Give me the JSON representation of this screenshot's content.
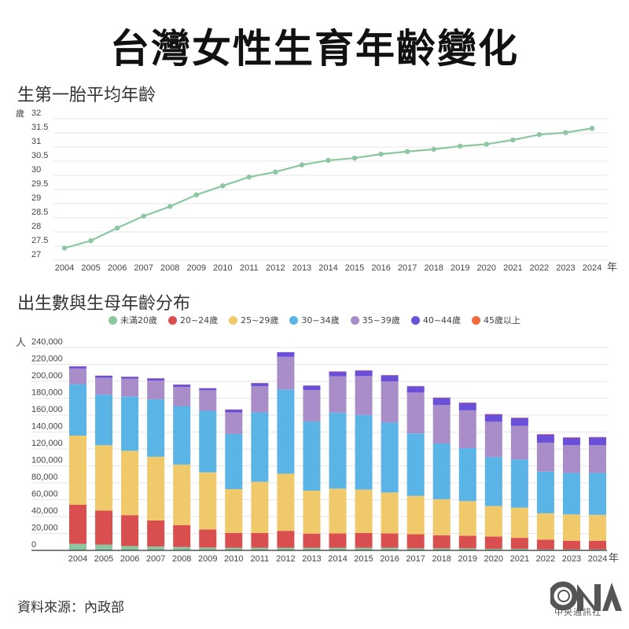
{
  "title": "台灣女性生育年齡變化",
  "source": "資料來源：內政部",
  "logo": {
    "text": "中央通訊社",
    "mark": "CNA"
  },
  "colors": {
    "line": "#8cc7a1",
    "grid": "#e6e6e6",
    "axis": "#333333"
  },
  "chart_data": [
    {
      "type": "line",
      "title": "生第一胎平均年齡",
      "ylabel": "歲",
      "xlabel": "年",
      "ylim": [
        27,
        32
      ],
      "yticks": [
        "27",
        "27.5",
        "28",
        "28.5",
        "29",
        "29.5",
        "30",
        "30.5",
        "31",
        "31.5",
        "32"
      ],
      "grid": true,
      "x": [
        "2004",
        "2005",
        "2006",
        "2007",
        "2008",
        "2009",
        "2010",
        "2011",
        "2012",
        "2013",
        "2014",
        "2015",
        "2016",
        "2017",
        "2018",
        "2019",
        "2020",
        "2021",
        "2022",
        "2023",
        "2024"
      ],
      "values": [
        27.43,
        27.69,
        28.14,
        28.56,
        28.9,
        29.31,
        29.63,
        29.94,
        30.12,
        30.37,
        30.53,
        30.61,
        30.75,
        30.84,
        30.92,
        31.03,
        31.1,
        31.25,
        31.44,
        31.51,
        31.66
      ]
    },
    {
      "type": "bar",
      "stacked": true,
      "title": "出生數與生母年齡分布",
      "ylabel": "人",
      "xlabel": "年",
      "ylim": [
        0,
        240000
      ],
      "yticks": [
        "0",
        "20,000",
        "40,000",
        "60,000",
        "80,000",
        "100,000",
        "120,000",
        "140,000",
        "160,000",
        "180,000",
        "200,000",
        "220,000",
        "240,000"
      ],
      "grid": true,
      "legend_position": "top",
      "categories": [
        "2004",
        "2005",
        "2006",
        "2007",
        "2008",
        "2009",
        "2010",
        "2011",
        "2012",
        "2013",
        "2014",
        "2015",
        "2016",
        "2017",
        "2018",
        "2019",
        "2020",
        "2021",
        "2022",
        "2023",
        "2024"
      ],
      "series": [
        {
          "name": "未滿20歲",
          "color": "#8cc7a1",
          "values": [
            7700,
            6800,
            5200,
            4600,
            4000,
            3400,
            3100,
            3100,
            3100,
            3100,
            3100,
            3100,
            3100,
            2500,
            2500,
            2500,
            1900,
            1900,
            1200,
            1200,
            1200
          ]
        },
        {
          "name": "20~24歲",
          "color": "#d94f50",
          "values": [
            46300,
            40400,
            36500,
            30900,
            25900,
            21300,
            17600,
            17600,
            20000,
            16700,
            17000,
            17600,
            17000,
            16600,
            15400,
            14800,
            14500,
            12900,
            11500,
            10200,
            10200
          ]
        },
        {
          "name": "25~29歲",
          "color": "#f0c96a",
          "values": [
            81800,
            77200,
            76200,
            75300,
            71600,
            67600,
            51800,
            60500,
            67600,
            50900,
            53000,
            51200,
            48400,
            45400,
            42600,
            41000,
            36100,
            35800,
            31100,
            31200,
            30600
          ]
        },
        {
          "name": "30~34歲",
          "color": "#5ab4e5",
          "values": [
            60800,
            59900,
            64200,
            67900,
            69200,
            72800,
            65200,
            82100,
            99700,
            81800,
            89900,
            88300,
            83000,
            73800,
            66000,
            62700,
            58000,
            57100,
            49400,
            49100,
            49700
          ]
        },
        {
          "name": "35~39歲",
          "color": "#a98dc8",
          "values": [
            18500,
            20000,
            21000,
            22200,
            22800,
            24400,
            25600,
            31100,
            38600,
            37300,
            42900,
            46000,
            48500,
            48400,
            45400,
            44700,
            41700,
            39500,
            34300,
            32700,
            32700
          ]
        },
        {
          "name": "40~44歲",
          "color": "#6a4fd9",
          "values": [
            2500,
            2200,
            2300,
            2600,
            2600,
            2300,
            3200,
            3500,
            5400,
            5100,
            5600,
            6600,
            7200,
            7500,
            8500,
            8800,
            8700,
            9400,
            9600,
            9000,
            9400
          ]
        },
        {
          "name": "45歲以上",
          "color": "#f26b3a",
          "values": [
            300,
            300,
            200,
            200,
            200,
            200,
            200,
            200,
            200,
            200,
            300,
            300,
            300,
            300,
            500,
            500,
            400,
            500,
            500,
            400,
            400
          ]
        }
      ]
    }
  ]
}
